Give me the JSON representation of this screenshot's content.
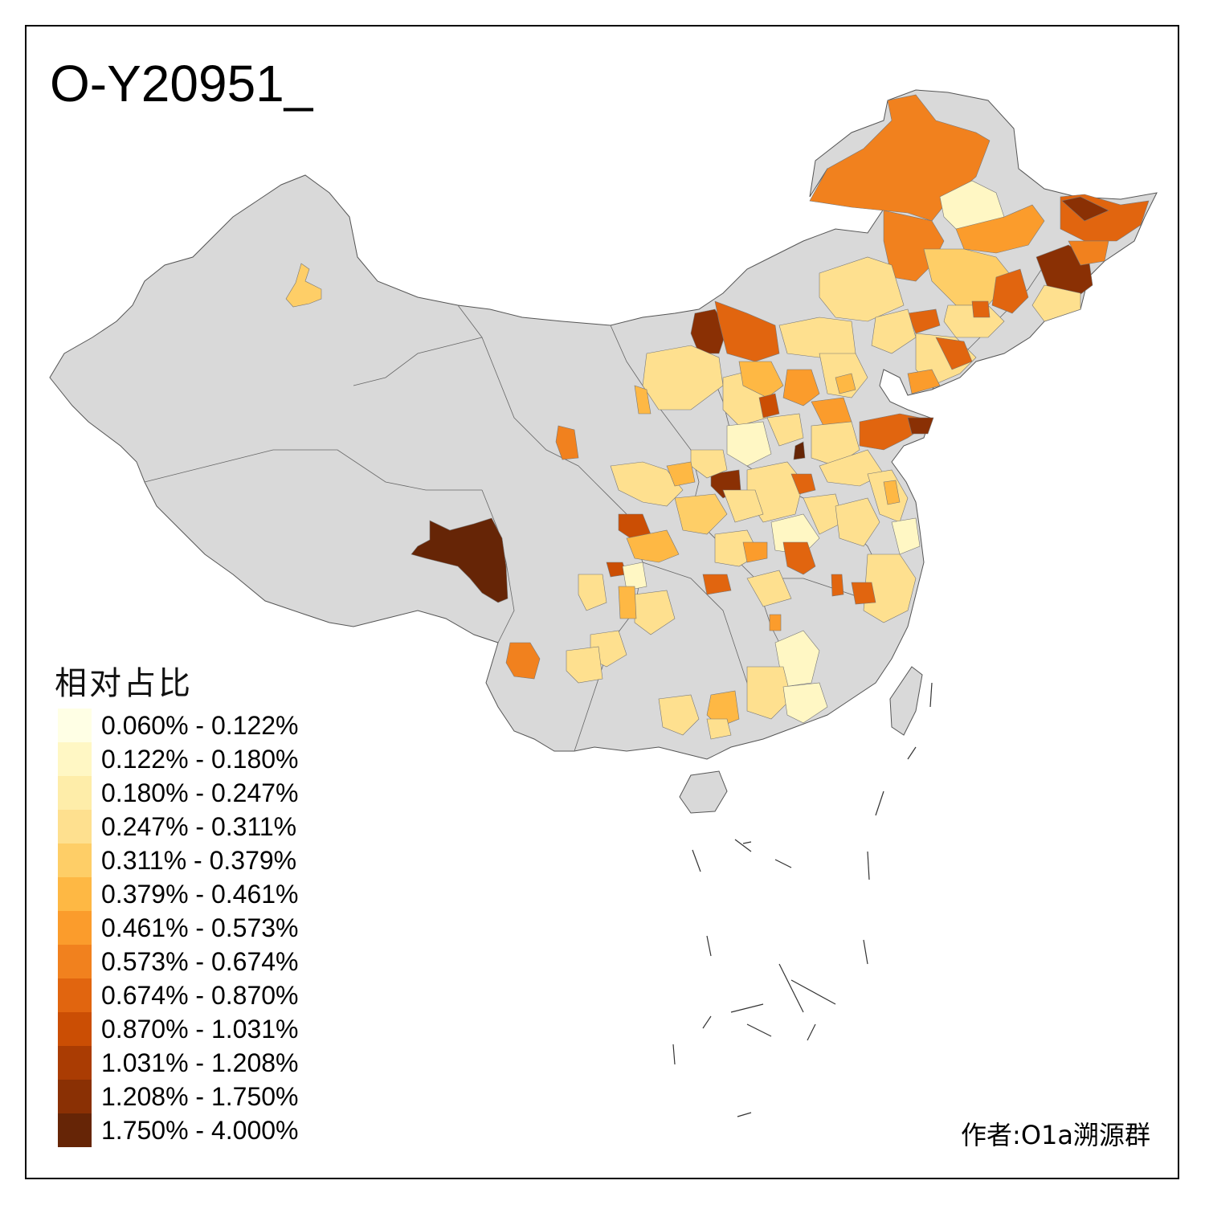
{
  "title": "O-Y20951_",
  "legend": {
    "title": "相对占比",
    "items": [
      {
        "label": "0.060% - 0.122%",
        "color": "#FFFFE5"
      },
      {
        "label": "0.122% - 0.180%",
        "color": "#FFF7C4"
      },
      {
        "label": "0.180% - 0.247%",
        "color": "#FEEDA9"
      },
      {
        "label": "0.247% - 0.311%",
        "color": "#FEE08F"
      },
      {
        "label": "0.311% - 0.379%",
        "color": "#FECE67"
      },
      {
        "label": "0.379% - 0.461%",
        "color": "#FEB844"
      },
      {
        "label": "0.461% - 0.573%",
        "color": "#FB9C2C"
      },
      {
        "label": "0.573% - 0.674%",
        "color": "#F1811E"
      },
      {
        "label": "0.674% - 0.870%",
        "color": "#E1650F"
      },
      {
        "label": "0.870% - 1.031%",
        "color": "#CB4E04"
      },
      {
        "label": "1.031% - 1.208%",
        "color": "#AA3C03"
      },
      {
        "label": "1.208% - 1.750%",
        "color": "#8A3004"
      },
      {
        "label": "1.750% - 4.000%",
        "color": "#662506"
      }
    ]
  },
  "author": "作者:O1a溯源群",
  "colors": {
    "no_data": "#D9D9D9",
    "border": "#555555"
  }
}
